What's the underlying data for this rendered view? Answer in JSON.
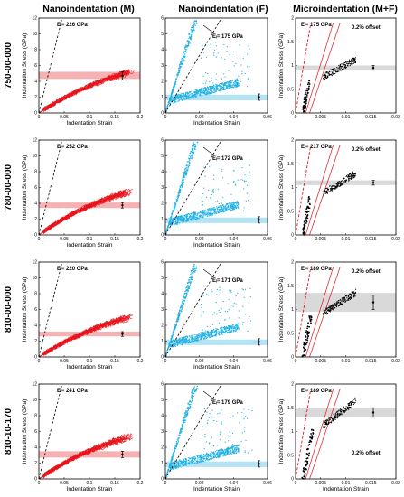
{
  "columns": [
    {
      "title": "Nanoindentation (M)",
      "color": "#e8131b"
    },
    {
      "title": "Nanoindentation (F)",
      "color": "#1fb1e4"
    },
    {
      "title": "Microindentation (M+F)",
      "color": "#000000"
    }
  ],
  "rows": [
    "750-00-000",
    "780-00-000",
    "810-00-000",
    "810-10-170"
  ],
  "colors": {
    "matrix": "#e8131b",
    "fiber": "#1fb1e4",
    "micro": "#000000",
    "band_matrix": "#f5a3a6",
    "band_fiber": "#a6dff3",
    "band_micro": "#d2d2d2"
  },
  "chart_data": [
    {
      "type": "scatter",
      "panel": "750-00-000 / Nanoindentation (M)",
      "xlabel": "Indentation Strain",
      "ylabel": "Indentation Stress (GPa)",
      "xlim": [
        0,
        0.2
      ],
      "ylim": [
        0,
        12
      ],
      "xticks": [
        "0",
        "0.05",
        "0.1",
        "0.15",
        "0.2"
      ],
      "yticks": [
        "0",
        "2",
        "4",
        "6",
        "8",
        "10",
        "12"
      ],
      "modulus_label": "Eᵢ= 226 GPa",
      "modulus_gpa": 226,
      "yield_band": [
        4.3,
        5.2
      ],
      "mean_point": {
        "x": 0.165,
        "y": 4.7,
        "err": 0.5
      },
      "grid": false
    },
    {
      "type": "scatter",
      "panel": "750-00-000 / Nanoindentation (F)",
      "xlabel": "Indentation Strain",
      "ylabel": "",
      "xlim": [
        0,
        0.06
      ],
      "ylim": [
        0,
        6
      ],
      "xticks": [
        "0",
        "0.02",
        "0.04",
        "0.06"
      ],
      "yticks": [
        "0",
        "1",
        "2",
        "3",
        "4",
        "5",
        "6"
      ],
      "modulus_label": "Eᵢ= 175 GPa",
      "modulus_gpa": 175,
      "yield_band": [
        0.8,
        1.15
      ],
      "mean_point": {
        "x": 0.055,
        "y": 1.0,
        "err": 0.2
      },
      "grid": false
    },
    {
      "type": "scatter",
      "panel": "750-00-000 / Microindentation (M+F)",
      "xlabel": "",
      "ylabel": "Indentation Stress (GPa)",
      "xlim": [
        0,
        0.02
      ],
      "ylim": [
        0,
        2
      ],
      "xticks": [
        "0",
        "0.005",
        "0.01",
        "0.015",
        "0.02"
      ],
      "yticks": [
        "0",
        "0.5",
        "1",
        "1.5",
        "2"
      ],
      "modulus_label": "Eᵢ= 175 GPa",
      "modulus_gpa": 175,
      "offset_label": "0.2% offset",
      "yield_band": [
        0.9,
        1.0
      ],
      "mean_point": {
        "x": 0.0155,
        "y": 0.95,
        "err": 0.05
      },
      "grid": false
    },
    {
      "type": "scatter",
      "panel": "780-00-000 / Nanoindentation (M)",
      "xlabel": "Indentation Strain",
      "ylabel": "Indentation Stress (GPa)",
      "xlim": [
        0,
        0.2
      ],
      "ylim": [
        0,
        12
      ],
      "xticks": [
        "0",
        "0.05",
        "0.1",
        "0.15",
        "0.2"
      ],
      "yticks": [
        "0",
        "2",
        "4",
        "6",
        "8",
        "10",
        "12"
      ],
      "modulus_label": "Eᵢ= 252 GPa",
      "modulus_gpa": 252,
      "yield_band": [
        3.4,
        4.1
      ],
      "mean_point": {
        "x": 0.165,
        "y": 3.75,
        "err": 0.35
      },
      "grid": false
    },
    {
      "type": "scatter",
      "panel": "780-00-000 / Nanoindentation (F)",
      "xlabel": "Indentation Strain",
      "ylabel": "",
      "xlim": [
        0,
        0.06
      ],
      "ylim": [
        0,
        6
      ],
      "xticks": [
        "0",
        "0.02",
        "0.04",
        "0.06"
      ],
      "yticks": [
        "0",
        "1",
        "2",
        "3",
        "4",
        "5",
        "6"
      ],
      "modulus_label": "Eᵢ= 172 GPa",
      "modulus_gpa": 172,
      "yield_band": [
        0.75,
        1.1
      ],
      "mean_point": {
        "x": 0.055,
        "y": 0.95,
        "err": 0.2
      },
      "grid": false
    },
    {
      "type": "scatter",
      "panel": "780-00-000 / Microindentation (M+F)",
      "xlabel": "",
      "ylabel": "Indentation Stress (GPa)",
      "xlim": [
        0,
        0.02
      ],
      "ylim": [
        0,
        2
      ],
      "xticks": [
        "0",
        "0.005",
        "0.01",
        "0.015",
        "0.02"
      ],
      "yticks": [
        "0",
        "0.5",
        "1",
        "1.5",
        "2"
      ],
      "modulus_label": "Eᵢ= 217 GPa",
      "modulus_gpa": 217,
      "offset_label": "0.2% offset",
      "yield_band": [
        1.05,
        1.15
      ],
      "mean_point": {
        "x": 0.0155,
        "y": 1.1,
        "err": 0.05
      },
      "grid": false
    },
    {
      "type": "scatter",
      "panel": "810-00-000 / Nanoindentation (M)",
      "xlabel": "Indentation Strain",
      "ylabel": "Indentation Stress (GPa)",
      "xlim": [
        0,
        0.2
      ],
      "ylim": [
        0,
        12
      ],
      "xticks": [
        "0",
        "0.05",
        "0.1",
        "0.15",
        "0.2"
      ],
      "yticks": [
        "0",
        "2",
        "4",
        "6",
        "8",
        "10",
        "12"
      ],
      "modulus_label": "Eᵢ= 220 GPa",
      "modulus_gpa": 220,
      "yield_band": [
        2.6,
        3.2
      ],
      "mean_point": {
        "x": 0.165,
        "y": 2.9,
        "err": 0.3
      },
      "grid": false
    },
    {
      "type": "scatter",
      "panel": "810-00-000 / Nanoindentation (F)",
      "xlabel": "Indentation Strain",
      "ylabel": "",
      "xlim": [
        0,
        0.06
      ],
      "ylim": [
        0,
        6
      ],
      "xticks": [
        "0",
        "0.02",
        "0.04",
        "0.06"
      ],
      "yticks": [
        "0",
        "1",
        "2",
        "3",
        "4",
        "5",
        "6"
      ],
      "modulus_label": "Eᵢ= 171 GPa",
      "modulus_gpa": 171,
      "yield_band": [
        0.75,
        1.1
      ],
      "mean_point": {
        "x": 0.055,
        "y": 0.95,
        "err": 0.2
      },
      "grid": false
    },
    {
      "type": "scatter",
      "panel": "810-00-000 / Microindentation (M+F)",
      "xlabel": "",
      "ylabel": "Indentation Stress (GPa)",
      "xlim": [
        0,
        0.02
      ],
      "ylim": [
        0,
        2
      ],
      "xticks": [
        "0",
        "0.005",
        "0.01",
        "0.015",
        "0.02"
      ],
      "yticks": [
        "0",
        "0.5",
        "1",
        "1.5",
        "2"
      ],
      "modulus_label": "Eᵢ= 189 GPa",
      "modulus_gpa": 189,
      "offset_label": "0.2% offset",
      "yield_band": [
        0.95,
        1.35
      ],
      "mean_point": {
        "x": 0.0155,
        "y": 1.15,
        "err": 0.15
      },
      "grid": false
    },
    {
      "type": "scatter",
      "panel": "810-10-170 / Nanoindentation (M)",
      "xlabel": "Indentation Strain",
      "ylabel": "Indentation Stress (GPa)",
      "xlim": [
        0,
        0.2
      ],
      "ylim": [
        0,
        12
      ],
      "xticks": [
        "0",
        "0.05",
        "0.1",
        "0.15",
        "0.2"
      ],
      "yticks": [
        "0",
        "2",
        "4",
        "6",
        "8",
        "10",
        "12"
      ],
      "modulus_label": "Eᵢ= 241 GPa",
      "modulus_gpa": 241,
      "yield_band": [
        2.7,
        3.5
      ],
      "mean_point": {
        "x": 0.165,
        "y": 3.1,
        "err": 0.4
      },
      "grid": false
    },
    {
      "type": "scatter",
      "panel": "810-10-170 / Nanoindentation (F)",
      "xlabel": "Indentation Strain",
      "ylabel": "",
      "xlim": [
        0,
        0.06
      ],
      "ylim": [
        0,
        6
      ],
      "xticks": [
        "0",
        "0.02",
        "0.04",
        "0.06"
      ],
      "yticks": [
        "0",
        "1",
        "2",
        "3",
        "4",
        "5",
        "6"
      ],
      "modulus_label": "Eᵢ= 179 GPa",
      "modulus_gpa": 179,
      "yield_band": [
        0.75,
        1.1
      ],
      "mean_point": {
        "x": 0.055,
        "y": 0.95,
        "err": 0.2
      },
      "grid": false
    },
    {
      "type": "scatter",
      "panel": "810-10-170 / Microindentation (M+F)",
      "xlabel": "Indentation Strain",
      "ylabel": "Indentation Stress (GPa)",
      "xlim": [
        0,
        0.02
      ],
      "ylim": [
        0,
        2
      ],
      "xticks": [
        "0",
        "0.005",
        "0.01",
        "0.015",
        "0.02"
      ],
      "yticks": [
        "0",
        "0.5",
        "1",
        "1.5",
        "2"
      ],
      "modulus_label": "Eᵢ= 189 GPa",
      "modulus_gpa": 189,
      "offset_label": "0.2% offset",
      "yield_band": [
        1.3,
        1.5
      ],
      "mean_point": {
        "x": 0.0155,
        "y": 1.4,
        "err": 0.1
      },
      "grid": false
    }
  ]
}
